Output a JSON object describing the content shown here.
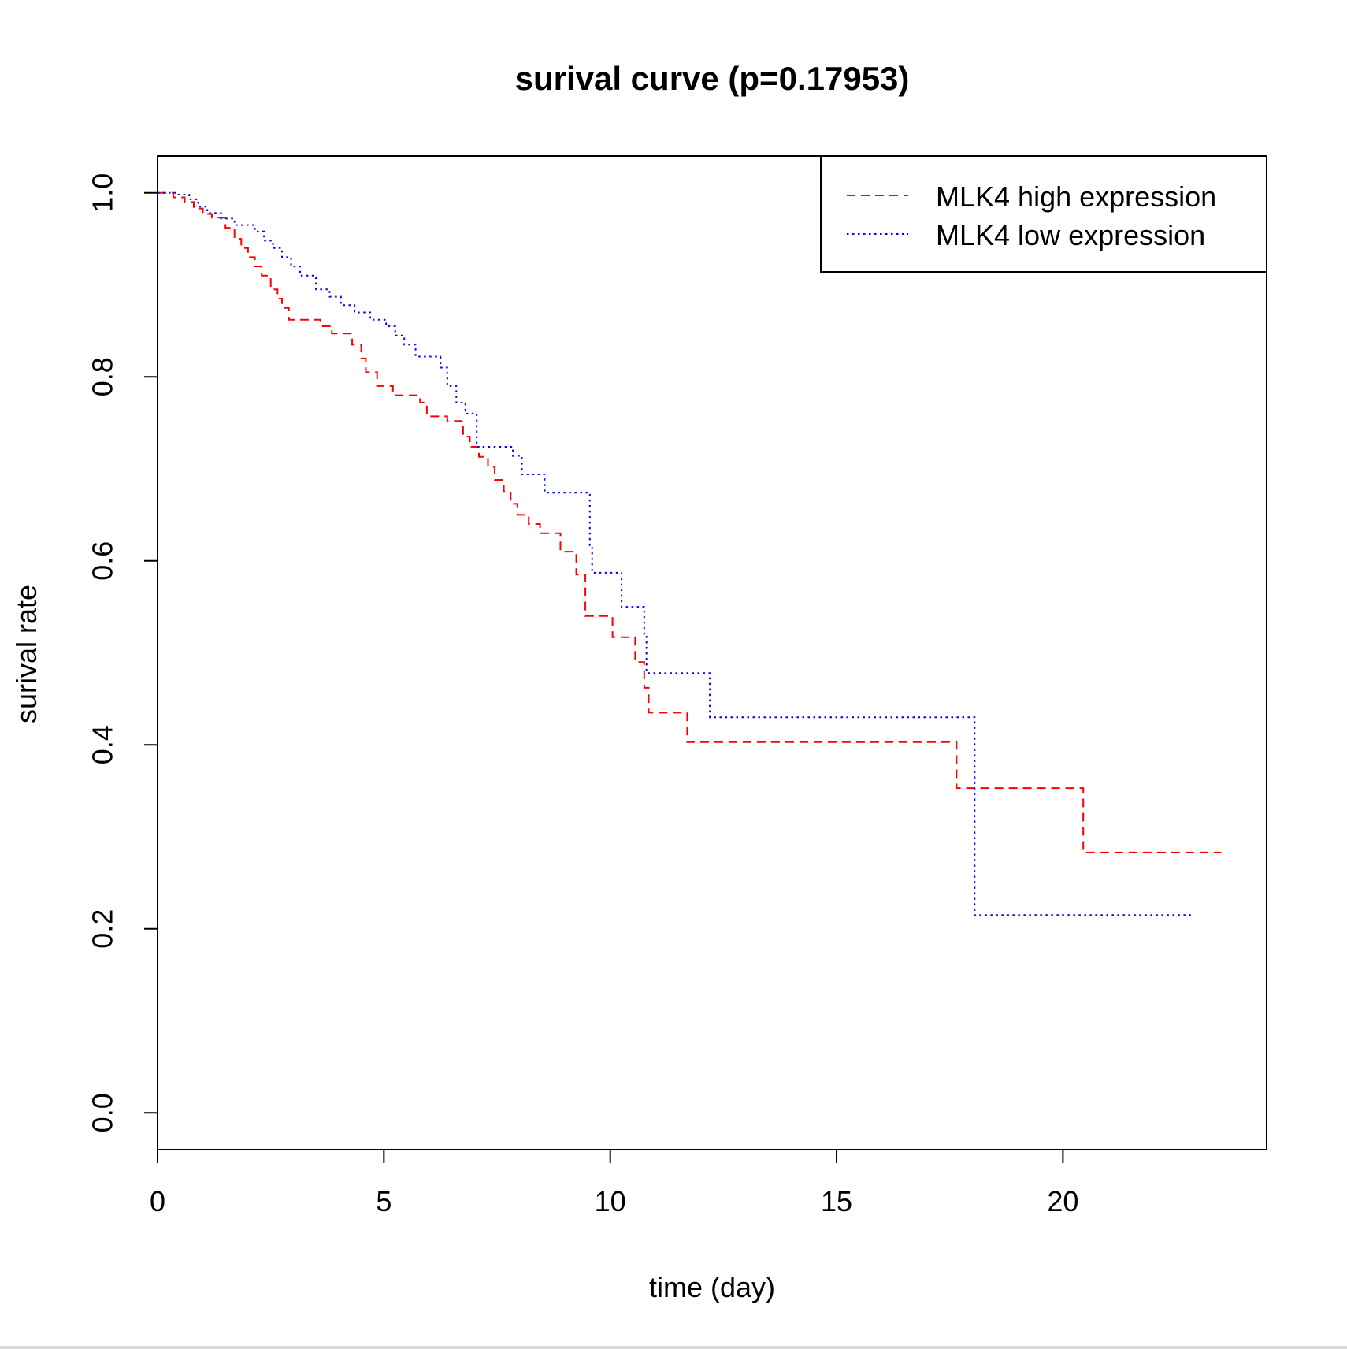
{
  "chart_data": {
    "type": "line",
    "title": "surival curve (p=0.17953)",
    "xlabel": "time (day)",
    "ylabel": "surival rate",
    "xlim": [
      0,
      24.5
    ],
    "ylim": [
      -0.04,
      1.04
    ],
    "x_ticks": [
      0,
      5,
      10,
      15,
      20
    ],
    "x_tick_labels": [
      "0",
      "5",
      "10",
      "15",
      "20"
    ],
    "y_ticks": [
      0.0,
      0.2,
      0.4,
      0.6,
      0.8,
      1.0
    ],
    "y_tick_labels": [
      "0.0",
      "0.2",
      "0.4",
      "0.6",
      "0.8",
      "1.0"
    ],
    "grid": false,
    "legend_position": "top-right",
    "series": [
      {
        "name": "MLK4 high expression",
        "color": "#ff0000",
        "style": "dashed",
        "x": [
          0,
          0.35,
          0.6,
          0.8,
          1.0,
          1.2,
          1.5,
          1.7,
          1.85,
          2.0,
          2.15,
          2.3,
          2.5,
          2.65,
          2.75,
          2.9,
          3.15,
          3.6,
          3.85,
          4.3,
          4.5,
          4.6,
          4.85,
          5.2,
          5.8,
          5.95,
          6.4,
          6.75,
          6.9,
          7.1,
          7.3,
          7.45,
          7.65,
          7.8,
          7.95,
          8.2,
          8.45,
          8.9,
          9.25,
          9.45,
          10.05,
          10.55,
          10.75,
          10.85,
          11.7,
          17.65,
          20.45,
          23.5
        ],
        "y": [
          1.0,
          0.995,
          0.99,
          0.983,
          0.977,
          0.973,
          0.962,
          0.95,
          0.94,
          0.93,
          0.92,
          0.91,
          0.895,
          0.885,
          0.875,
          0.862,
          0.862,
          0.855,
          0.847,
          0.835,
          0.82,
          0.805,
          0.79,
          0.78,
          0.772,
          0.757,
          0.752,
          0.735,
          0.724,
          0.713,
          0.702,
          0.688,
          0.675,
          0.662,
          0.65,
          0.64,
          0.63,
          0.61,
          0.585,
          0.54,
          0.517,
          0.49,
          0.462,
          0.435,
          0.403,
          0.353,
          0.283,
          0.283
        ]
      },
      {
        "name": "MLK4 low expression",
        "color": "#0000ff",
        "style": "dotted",
        "x": [
          0,
          0.4,
          0.7,
          0.9,
          1.1,
          1.4,
          1.7,
          2.15,
          2.35,
          2.55,
          2.75,
          2.95,
          3.15,
          3.5,
          3.8,
          4.05,
          4.35,
          4.7,
          5.05,
          5.25,
          5.45,
          5.7,
          6.25,
          6.4,
          6.6,
          6.8,
          7.05,
          7.85,
          8.05,
          8.55,
          9.55,
          9.6,
          10.25,
          10.75,
          10.8,
          12.2,
          18.05,
          22.9
        ],
        "y": [
          1.0,
          0.998,
          0.993,
          0.985,
          0.978,
          0.972,
          0.965,
          0.958,
          0.948,
          0.94,
          0.93,
          0.92,
          0.91,
          0.895,
          0.887,
          0.878,
          0.87,
          0.862,
          0.855,
          0.845,
          0.835,
          0.822,
          0.81,
          0.79,
          0.772,
          0.76,
          0.724,
          0.714,
          0.694,
          0.674,
          0.617,
          0.587,
          0.55,
          0.52,
          0.478,
          0.43,
          0.215,
          0.215
        ]
      }
    ]
  }
}
